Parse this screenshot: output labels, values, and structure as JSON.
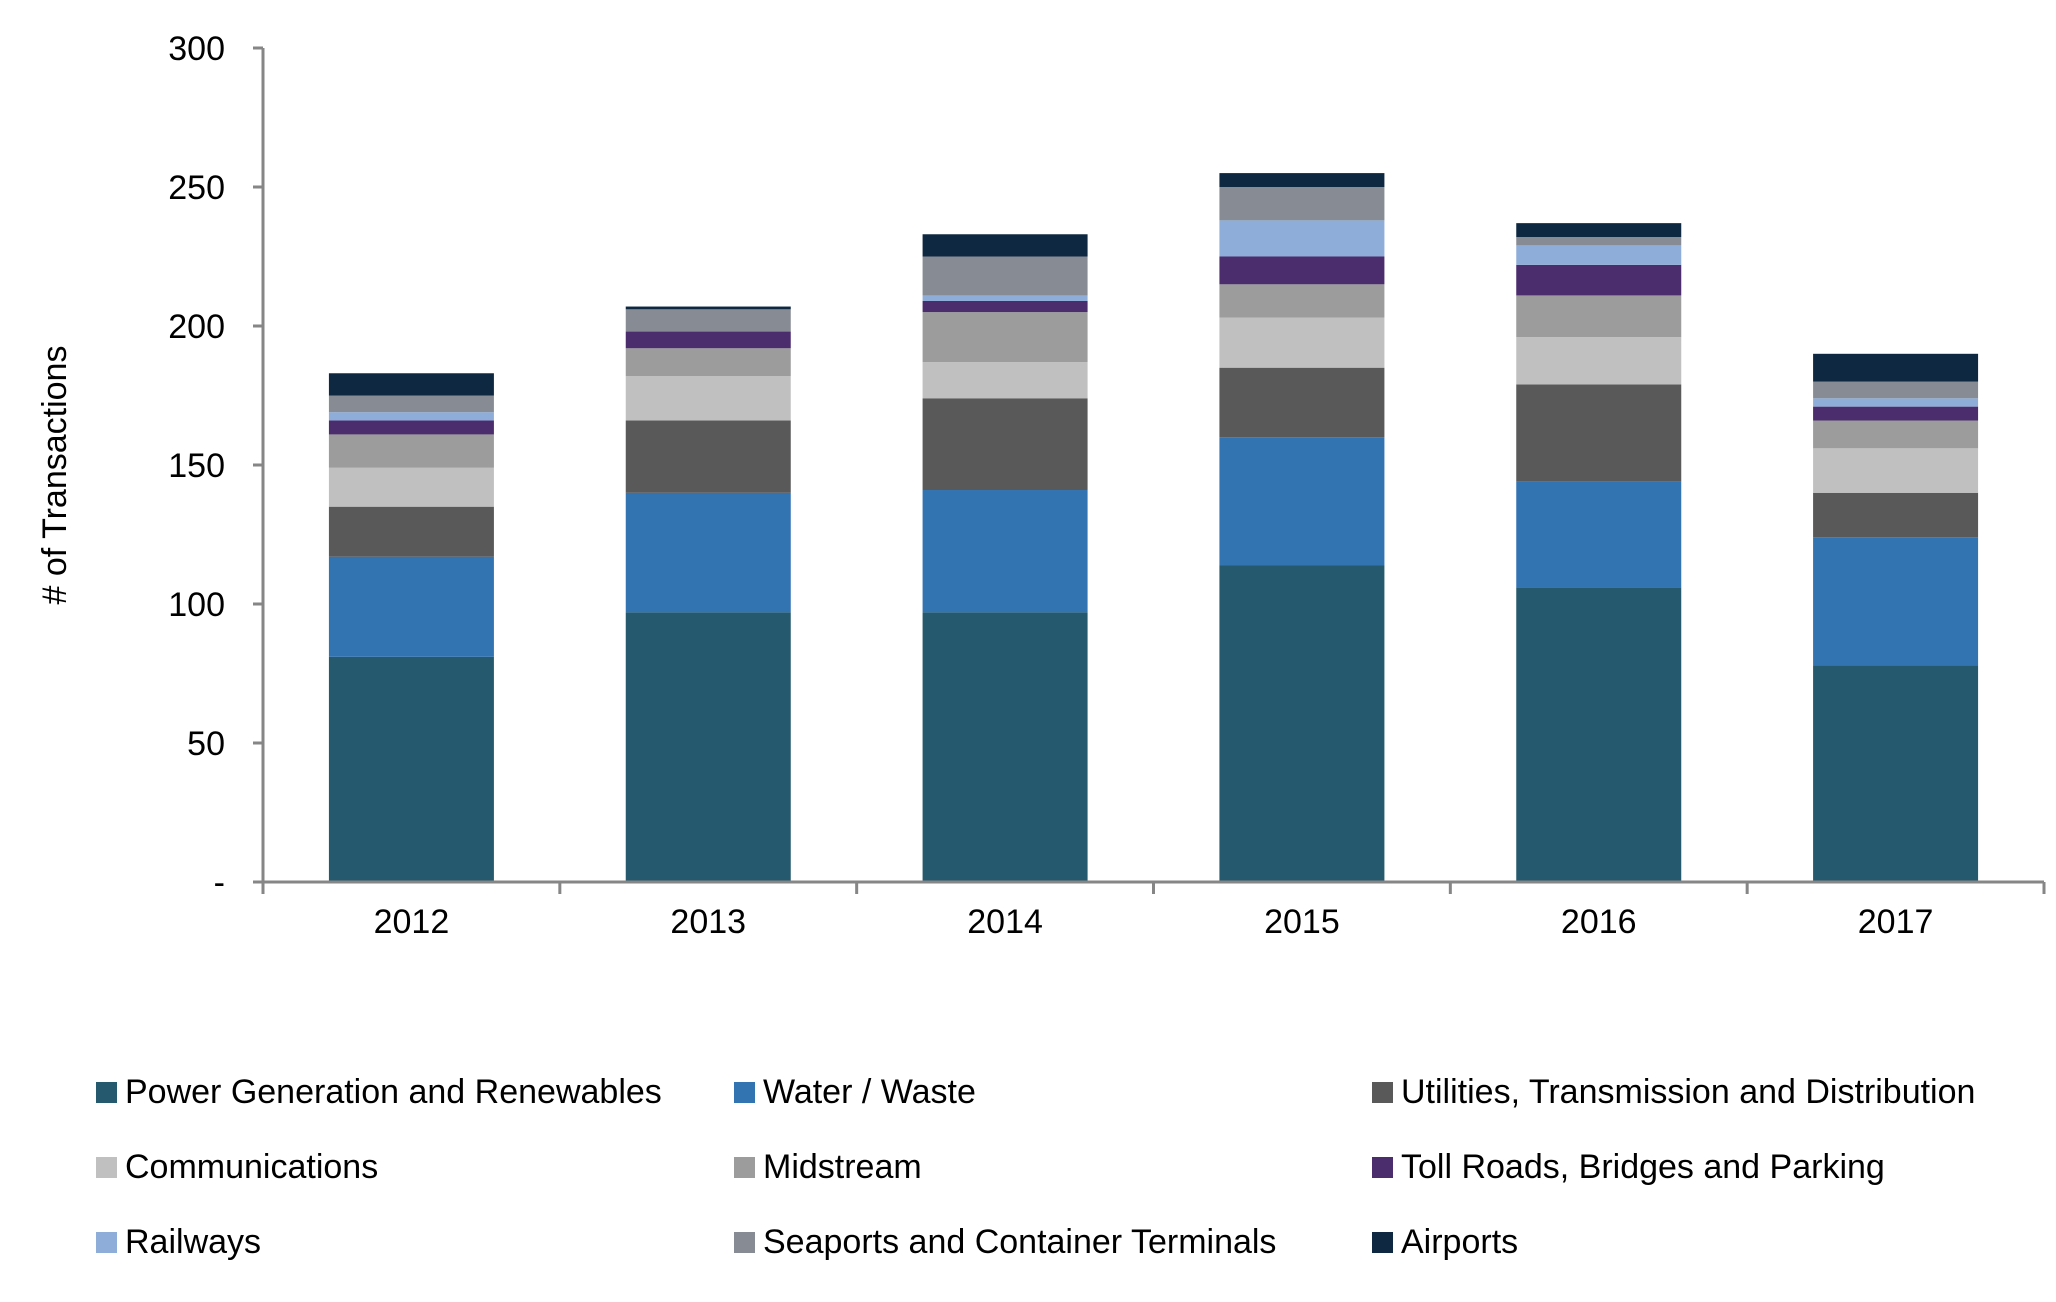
{
  "chart_data": {
    "type": "bar",
    "stacked": true,
    "categories": [
      "2012",
      "2013",
      "2014",
      "2015",
      "2016",
      "2017"
    ],
    "ylabel": "# of Transactions",
    "ylim": [
      0,
      300
    ],
    "yticks": [
      {
        "value": 0,
        "label": "-"
      },
      {
        "value": 50,
        "label": "50"
      },
      {
        "value": 100,
        "label": "100"
      },
      {
        "value": 150,
        "label": "150"
      },
      {
        "value": 200,
        "label": "200"
      },
      {
        "value": 250,
        "label": "250"
      },
      {
        "value": 300,
        "label": "300"
      }
    ],
    "grid": false,
    "legend_position": "bottom",
    "series": [
      {
        "name": "Power Generation and Renewables",
        "color": "#255a6e",
        "values": [
          81,
          97,
          97,
          114,
          106,
          78
        ]
      },
      {
        "name": "Water / Waste",
        "color": "#3273b2",
        "values": [
          36,
          43,
          44,
          46,
          38,
          46
        ]
      },
      {
        "name": "Utilities, Transmission and Distribution",
        "color": "#595959",
        "values": [
          18,
          26,
          33,
          25,
          35,
          16
        ]
      },
      {
        "name": "Communications",
        "color": "#c0c0c0",
        "values": [
          14,
          16,
          13,
          18,
          17,
          16
        ]
      },
      {
        "name": "Midstream",
        "color": "#9c9c9c",
        "values": [
          12,
          10,
          18,
          12,
          15,
          10
        ]
      },
      {
        "name": "Toll Roads, Bridges and Parking",
        "color": "#4b2d6e",
        "values": [
          5,
          6,
          4,
          10,
          11,
          5
        ]
      },
      {
        "name": "Railways",
        "color": "#8fadd9",
        "values": [
          3,
          0,
          2,
          13,
          7,
          3
        ]
      },
      {
        "name": "Seaports and Container Terminals",
        "color": "#878c94",
        "values": [
          6,
          8,
          14,
          12,
          3,
          6
        ]
      },
      {
        "name": "Airports",
        "color": "#0f2842",
        "values": [
          8,
          1,
          8,
          5,
          5,
          10
        ]
      }
    ]
  }
}
